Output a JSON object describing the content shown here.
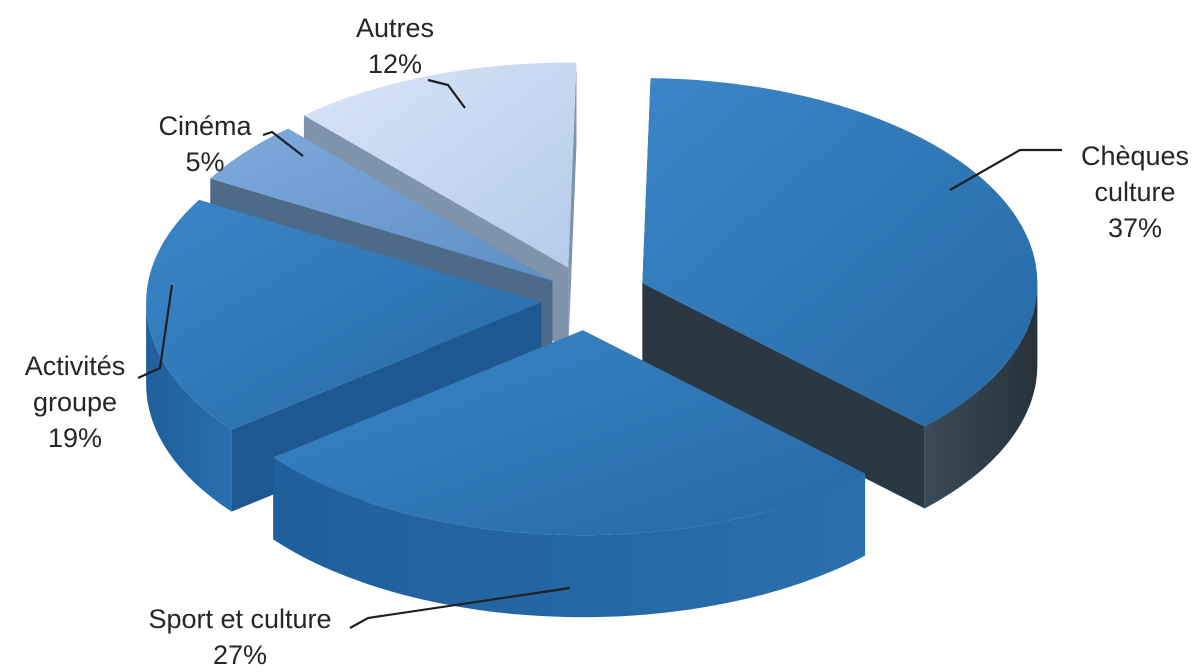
{
  "chart_data": {
    "type": "pie",
    "title": "",
    "slices": [
      {
        "name": "Chèques culture",
        "label_lines": [
          "Chèques",
          "culture"
        ],
        "value": 37,
        "value_label": "37%",
        "color": "#2e75b6"
      },
      {
        "name": "Sport et culture",
        "label_lines": [
          "Sport et culture"
        ],
        "value": 27,
        "value_label": "27%",
        "color": "#2e75b6"
      },
      {
        "name": "Activités groupe",
        "label_lines": [
          "Activités",
          "groupe"
        ],
        "value": 19,
        "value_label": "19%",
        "color": "#2e75b6"
      },
      {
        "name": "Cinéma",
        "label_lines": [
          "Cinéma"
        ],
        "value": 5,
        "value_label": "5%",
        "color": "#6f9ed2"
      },
      {
        "name": "Autres",
        "label_lines": [
          "Autres"
        ],
        "value": 12,
        "value_label": "12%",
        "color": "#c6d7f0"
      }
    ],
    "exploded": true,
    "three_d": true,
    "legend": "none"
  }
}
